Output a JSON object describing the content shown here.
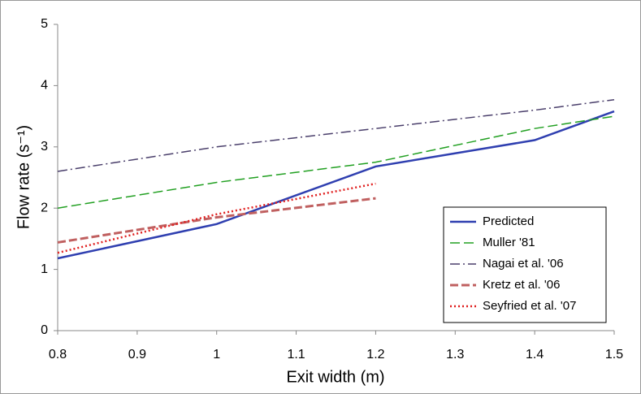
{
  "chart_data": {
    "type": "line",
    "xlabel": "Exit width (m)",
    "ylabel": "Flow rate (s⁻¹)",
    "x": [
      0.8,
      1.0,
      1.2,
      1.4,
      1.5
    ],
    "series": [
      {
        "name": "Predicted",
        "color": "#2f3fb0",
        "values": [
          1.18,
          1.74,
          2.68,
          3.11,
          3.58
        ]
      },
      {
        "name": "Muller '81",
        "color": "#22a022",
        "values": [
          2.0,
          2.42,
          2.75,
          3.3,
          3.5
        ]
      },
      {
        "name": "Nagai et al. '06",
        "color": "#4a3f6b",
        "values": [
          2.6,
          3.0,
          3.3,
          3.6,
          3.77
        ]
      },
      {
        "name": "Kretz et al. '06",
        "color": "#c06060",
        "values": [
          1.44,
          1.85,
          2.16,
          null,
          null
        ]
      },
      {
        "name": "Seyfried et al. '07",
        "color": "#e02020",
        "values": [
          1.27,
          1.9,
          2.4,
          null,
          null
        ]
      }
    ],
    "xlim": [
      0.8,
      1.5
    ],
    "ylim": [
      0,
      5
    ],
    "xticks": [
      0.8,
      0.9,
      1,
      1.1,
      1.2,
      1.3,
      1.4,
      1.5
    ],
    "yticks": [
      0,
      1,
      2,
      3,
      4,
      5
    ],
    "legend": "lower-right"
  }
}
